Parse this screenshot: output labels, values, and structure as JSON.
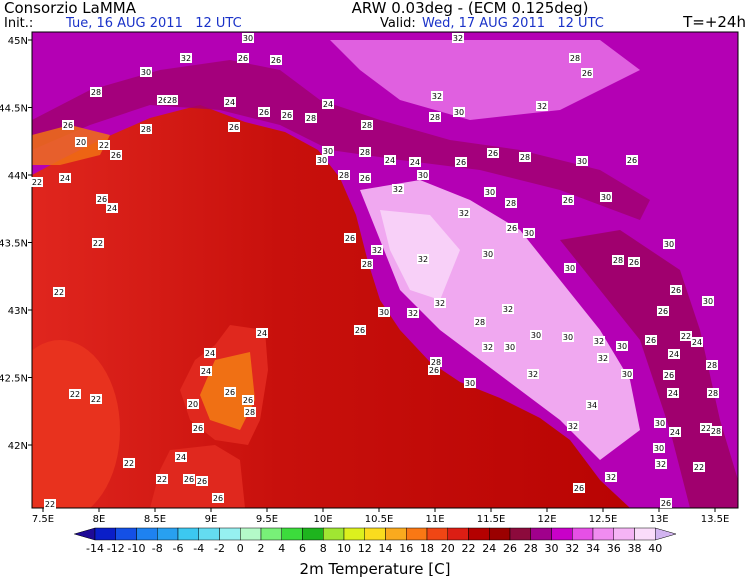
{
  "header": {
    "left_title": "Consorzio LaMMA",
    "center_title": "ARW 0.03deg - (ECM 0.125deg)",
    "init_label": "Init.:",
    "init_value": "Tue, 16 AUG 2011   12 UTC",
    "valid_label": "Valid:",
    "valid_value": "Wed, 17 AUG 2011   12 UTC",
    "lead": "T=+24h"
  },
  "map": {
    "lon_labels": [
      "7.5E",
      "8E",
      "8.5E",
      "9E",
      "9.5E",
      "10E",
      "10.5E",
      "11E",
      "11.5E",
      "12E",
      "12.5E",
      "13E",
      "13.5E"
    ],
    "lat_labels": [
      "45N",
      "44.5N",
      "44N",
      "43.5N",
      "43N",
      "42.5N",
      "42N"
    ],
    "station_labels": [
      30,
      32,
      32,
      26,
      26,
      30,
      28,
      26,
      28,
      26,
      28,
      24,
      26,
      24,
      32,
      32,
      26,
      28,
      26,
      28,
      28,
      28,
      30,
      20,
      22,
      26,
      26,
      30,
      30,
      28,
      24,
      24,
      26,
      26,
      28,
      30,
      26,
      22,
      24,
      26,
      24,
      28,
      26,
      32,
      30,
      30,
      28,
      26,
      30,
      32,
      22,
      26,
      32,
      32,
      28,
      30,
      26,
      30,
      30,
      28,
      26,
      30,
      22,
      26,
      30,
      32,
      32,
      32,
      28,
      30,
      26,
      30,
      30,
      24,
      26,
      22,
      24,
      32,
      30,
      26,
      24,
      24,
      32,
      30,
      28,
      26,
      32,
      24,
      32,
      30,
      26,
      30,
      28,
      22,
      22,
      26,
      20,
      26,
      34,
      24,
      28,
      28,
      26,
      30,
      24,
      22,
      28,
      32,
      24,
      22,
      30,
      32,
      22,
      22,
      26,
      26,
      32,
      26,
      26,
      22,
      26
    ]
  },
  "colorbar": {
    "label": "2m Temperature [C]",
    "ticks": [
      -14,
      -12,
      -10,
      -8,
      -6,
      -4,
      -2,
      0,
      2,
      4,
      6,
      8,
      10,
      12,
      14,
      16,
      18,
      20,
      22,
      24,
      26,
      28,
      30,
      32,
      34,
      36,
      38,
      40
    ],
    "colors": [
      "#1e0a96",
      "#0a1ec8",
      "#1450e6",
      "#1e82f0",
      "#28a0f0",
      "#3cc8f0",
      "#64dcf0",
      "#96f0f0",
      "#b4fac8",
      "#78f078",
      "#3cdc3c",
      "#1eb41e",
      "#a0e632",
      "#dcf01e",
      "#fadc1e",
      "#faaa1e",
      "#fa7814",
      "#f04614",
      "#dc1e14",
      "#b40000",
      "#9b0000",
      "#8c0a3c",
      "#a0008c",
      "#c800c8",
      "#e650e6",
      "#f08cf0",
      "#f5b4f5",
      "#fadcfa",
      "#d2b4f0"
    ]
  }
}
